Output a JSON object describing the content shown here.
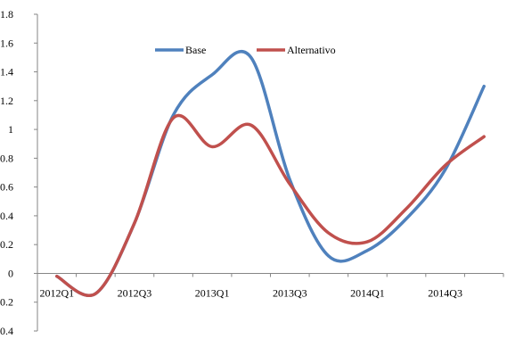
{
  "chart_data": {
    "type": "line",
    "title": "",
    "xlabel": "",
    "ylabel": "",
    "ylim": [
      -0.4,
      1.8
    ],
    "yticks": [
      -0.4,
      -0.2,
      0,
      0.2,
      0.4,
      0.6,
      0.8,
      1,
      1.2,
      1.4,
      1.6,
      1.8
    ],
    "ytick_labels": [
      "-0.4",
      "-0.2",
      "0",
      "0.2",
      "0.4",
      "0.6",
      "0.8",
      "1",
      "1.2",
      "1.4",
      "1.6",
      "1.8"
    ],
    "categories": [
      "2012Q1",
      "2012Q2",
      "2012Q3",
      "2012Q4",
      "2013Q1",
      "2013Q2",
      "2013Q3",
      "2013Q4",
      "2014Q1",
      "2014Q2",
      "2014Q3",
      "2014Q4"
    ],
    "xtick_labels": [
      "2012Q1",
      "2012Q3",
      "2013Q1",
      "2013Q3",
      "2014Q1",
      "2014Q3"
    ],
    "grid": false,
    "legend": "top-center",
    "series": [
      {
        "name": "Base",
        "color": "#4F81BD",
        "values": [
          -0.02,
          -0.14,
          0.35,
          1.1,
          1.38,
          1.5,
          0.65,
          0.12,
          0.16,
          0.38,
          0.72,
          1.3
        ]
      },
      {
        "name": "Alternativo",
        "color": "#C0504D",
        "values": [
          -0.02,
          -0.14,
          0.35,
          1.08,
          0.88,
          1.03,
          0.62,
          0.28,
          0.22,
          0.45,
          0.75,
          0.95
        ]
      }
    ]
  }
}
